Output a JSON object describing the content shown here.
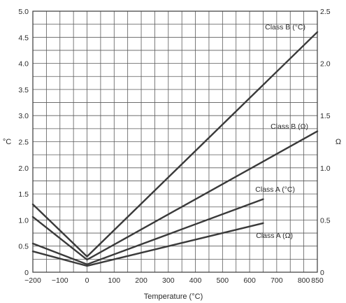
{
  "chart_data": {
    "type": "line",
    "xlabel": "Temperature (°C)",
    "ylabel_left": "°C",
    "ylabel_right": "Ω",
    "xlim": [
      -200,
      850
    ],
    "ylim_left": [
      0,
      5.0
    ],
    "ylim_right": [
      0,
      2.5
    ],
    "x_ticks": [
      "−200",
      "−100",
      "0",
      "100",
      "200",
      "300",
      "400",
      "500",
      "600",
      "700",
      "800",
      "850"
    ],
    "x_tick_values": [
      -200,
      -100,
      0,
      100,
      200,
      300,
      400,
      500,
      600,
      700,
      800,
      850
    ],
    "y_left_ticks": [
      "0",
      "0.5",
      "1.0",
      "1.5",
      "2.0",
      "2.5",
      "3.0",
      "3.5",
      "4.0",
      "4.5",
      "5.0"
    ],
    "y_left_tick_values": [
      0,
      0.5,
      1.0,
      1.5,
      2.0,
      2.5,
      3.0,
      3.5,
      4.0,
      4.5,
      5.0
    ],
    "y_right_ticks": [
      "0",
      "0.5",
      "1.0",
      "1.5",
      "2.0",
      "2.5"
    ],
    "y_right_tick_values": [
      0,
      0.5,
      1.0,
      1.5,
      2.0,
      2.5
    ],
    "grid": true,
    "series": [
      {
        "name": "Class B (°C)",
        "axis": "left",
        "x": [
          -200,
          0,
          850
        ],
        "y": [
          1.3,
          0.3,
          4.6
        ]
      },
      {
        "name": "Class B (Ω)",
        "axis": "right",
        "x": [
          -200,
          0,
          850
        ],
        "y": [
          0.53,
          0.12,
          1.35
        ]
      },
      {
        "name": "Class A (°C)",
        "axis": "left",
        "x": [
          -200,
          0,
          650
        ],
        "y": [
          0.55,
          0.15,
          1.4
        ]
      },
      {
        "name": "Class A (Ω)",
        "axis": "right",
        "x": [
          -200,
          0,
          650
        ],
        "y": [
          0.2,
          0.06,
          0.47
        ]
      }
    ]
  }
}
